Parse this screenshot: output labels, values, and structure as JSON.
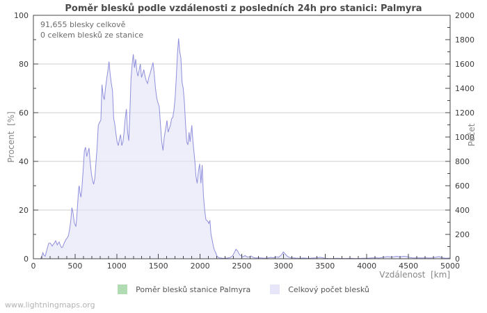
{
  "page": {
    "title": "Poměr blesků podle vzdálenosti z posledních 24h pro stanici: Palmyra",
    "watermark": "www.lightningmaps.org"
  },
  "annotation": {
    "line1": "91,655 blesky celkově",
    "line2": "0 celkem blesků ze stanice"
  },
  "axes": {
    "left_label": "Procent  [%]",
    "right_label": "Počet",
    "x_label": "Vzdálenost  [km]"
  },
  "legend": {
    "items": [
      {
        "label": "Poměr blesků stanice Palmyra",
        "color": "#b1dcb1"
      },
      {
        "label": "Celkový počet blesků",
        "color": "#e6e6f8"
      }
    ]
  },
  "chart_data": {
    "type": "area",
    "title": "Poměr blesků podle vzdálenosti z posledních 24h pro stanici: Palmyra",
    "xlabel": "Vzdálenost [km]",
    "ylabel_left": "Procent [%]",
    "ylabel_right": "Počet",
    "x_axis": {
      "min": 0,
      "max": 5000,
      "major": 500,
      "minor": 100
    },
    "y_left": {
      "min": 0,
      "max": 100,
      "major": 20,
      "minor": 10
    },
    "y_right": {
      "min": 0,
      "max": 2000,
      "major": 200,
      "minor": 100
    },
    "grid": true,
    "grid_color": "#cfcfcf",
    "frame_color": "#444444",
    "tick_label_color": "#3a3a3a",
    "legend_position": "bottom-center",
    "annotations": [
      "91,655 blesky celkově",
      "0 celkem blesků ze stanice"
    ],
    "series": [
      {
        "name": "Poměr blesků stanice Palmyra",
        "axis": "left",
        "line_color": "#9cc89c",
        "fill_color": "rgba(177,220,177,0.45)",
        "points": [
          [
            0,
            0
          ],
          [
            5000,
            0
          ]
        ]
      },
      {
        "name": "Celkový počet blesků",
        "axis": "right",
        "line_color": "#8f8fdc",
        "fill_color": "rgba(228,228,248,0.62)",
        "points": [
          [
            0,
            0
          ],
          [
            50,
            0
          ],
          [
            86,
            0
          ],
          [
            100,
            20
          ],
          [
            114,
            50
          ],
          [
            125,
            30
          ],
          [
            142,
            20
          ],
          [
            160,
            70
          ],
          [
            184,
            126
          ],
          [
            200,
            130
          ],
          [
            211,
            120
          ],
          [
            225,
            104
          ],
          [
            240,
            120
          ],
          [
            253,
            130
          ],
          [
            267,
            148
          ],
          [
            286,
            114
          ],
          [
            300,
            130
          ],
          [
            309,
            138
          ],
          [
            325,
            110
          ],
          [
            336,
            92
          ],
          [
            351,
            96
          ],
          [
            370,
            130
          ],
          [
            392,
            160
          ],
          [
            405,
            170
          ],
          [
            420,
            190
          ],
          [
            434,
            240
          ],
          [
            450,
            320
          ],
          [
            462,
            420
          ],
          [
            475,
            380
          ],
          [
            490,
            300
          ],
          [
            500,
            280
          ],
          [
            510,
            264
          ],
          [
            520,
            340
          ],
          [
            530,
            440
          ],
          [
            543,
            580
          ],
          [
            550,
            600
          ],
          [
            560,
            540
          ],
          [
            570,
            506
          ],
          [
            580,
            560
          ],
          [
            590,
            660
          ],
          [
            600,
            760
          ],
          [
            612,
            888
          ],
          [
            626,
            916
          ],
          [
            640,
            840
          ],
          [
            655,
            880
          ],
          [
            668,
            910
          ],
          [
            680,
            800
          ],
          [
            696,
            698
          ],
          [
            710,
            640
          ],
          [
            723,
            612
          ],
          [
            737,
            660
          ],
          [
            751,
            792
          ],
          [
            765,
            920
          ],
          [
            779,
            1098
          ],
          [
            795,
            1120
          ],
          [
            810,
            1140
          ],
          [
            823,
            1430
          ],
          [
            837,
            1340
          ],
          [
            851,
            1306
          ],
          [
            865,
            1400
          ],
          [
            880,
            1480
          ],
          [
            893,
            1540
          ],
          [
            907,
            1620
          ],
          [
            921,
            1520
          ],
          [
            935,
            1440
          ],
          [
            949,
            1380
          ],
          [
            963,
            1154
          ],
          [
            977,
            1106
          ],
          [
            990,
            1030
          ],
          [
            1004,
            960
          ],
          [
            1018,
            930
          ],
          [
            1032,
            980
          ],
          [
            1046,
            1020
          ],
          [
            1060,
            930
          ],
          [
            1074,
            960
          ],
          [
            1088,
            1040
          ],
          [
            1102,
            1154
          ],
          [
            1116,
            1230
          ],
          [
            1130,
            1040
          ],
          [
            1144,
            970
          ],
          [
            1158,
            1200
          ],
          [
            1171,
            1480
          ],
          [
            1185,
            1600
          ],
          [
            1199,
            1680
          ],
          [
            1213,
            1570
          ],
          [
            1227,
            1640
          ],
          [
            1241,
            1540
          ],
          [
            1255,
            1500
          ],
          [
            1269,
            1550
          ],
          [
            1283,
            1600
          ],
          [
            1297,
            1490
          ],
          [
            1311,
            1520
          ],
          [
            1325,
            1554
          ],
          [
            1340,
            1500
          ],
          [
            1355,
            1460
          ],
          [
            1370,
            1440
          ],
          [
            1385,
            1490
          ],
          [
            1400,
            1520
          ],
          [
            1415,
            1560
          ],
          [
            1436,
            1612
          ],
          [
            1450,
            1520
          ],
          [
            1465,
            1400
          ],
          [
            1480,
            1320
          ],
          [
            1495,
            1280
          ],
          [
            1510,
            1250
          ],
          [
            1525,
            1100
          ],
          [
            1540,
            960
          ],
          [
            1555,
            890
          ],
          [
            1570,
            1000
          ],
          [
            1585,
            1060
          ],
          [
            1603,
            1136
          ],
          [
            1617,
            1040
          ],
          [
            1630,
            1070
          ],
          [
            1645,
            1100
          ],
          [
            1658,
            1150
          ],
          [
            1672,
            1160
          ],
          [
            1686,
            1220
          ],
          [
            1700,
            1320
          ],
          [
            1715,
            1500
          ],
          [
            1728,
            1680
          ],
          [
            1742,
            1810
          ],
          [
            1756,
            1700
          ],
          [
            1770,
            1650
          ],
          [
            1784,
            1450
          ],
          [
            1798,
            1400
          ],
          [
            1812,
            1280
          ],
          [
            1826,
            1100
          ],
          [
            1840,
            960
          ],
          [
            1854,
            936
          ],
          [
            1868,
            1040
          ],
          [
            1880,
            960
          ],
          [
            1901,
            1096
          ],
          [
            1915,
            960
          ],
          [
            1937,
            802
          ],
          [
            1950,
            680
          ],
          [
            1965,
            620
          ],
          [
            1980,
            720
          ],
          [
            1995,
            780
          ],
          [
            2010,
            620
          ],
          [
            2025,
            770
          ],
          [
            2040,
            520
          ],
          [
            2055,
            400
          ],
          [
            2070,
            320
          ],
          [
            2090,
            310
          ],
          [
            2105,
            290
          ],
          [
            2118,
            316
          ],
          [
            2131,
            200
          ],
          [
            2145,
            154
          ],
          [
            2160,
            100
          ],
          [
            2173,
            70
          ],
          [
            2187,
            50
          ],
          [
            2201,
            24
          ],
          [
            2215,
            12
          ],
          [
            2240,
            6
          ],
          [
            2270,
            4
          ],
          [
            2300,
            4
          ],
          [
            2330,
            6
          ],
          [
            2360,
            10
          ],
          [
            2390,
            24
          ],
          [
            2410,
            50
          ],
          [
            2430,
            78
          ],
          [
            2450,
            64
          ],
          [
            2465,
            44
          ],
          [
            2480,
            30
          ],
          [
            2495,
            24
          ],
          [
            2510,
            16
          ],
          [
            2525,
            20
          ],
          [
            2540,
            26
          ],
          [
            2555,
            18
          ],
          [
            2570,
            14
          ],
          [
            2590,
            16
          ],
          [
            2610,
            22
          ],
          [
            2630,
            14
          ],
          [
            2650,
            8
          ],
          [
            2680,
            6
          ],
          [
            2710,
            8
          ],
          [
            2740,
            6
          ],
          [
            2770,
            4
          ],
          [
            2800,
            6
          ],
          [
            2830,
            8
          ],
          [
            2850,
            12
          ],
          [
            2870,
            8
          ],
          [
            2900,
            10
          ],
          [
            2920,
            16
          ],
          [
            2940,
            12
          ],
          [
            2963,
            24
          ],
          [
            2980,
            36
          ],
          [
            3000,
            56
          ],
          [
            3020,
            40
          ],
          [
            3047,
            20
          ],
          [
            3070,
            12
          ],
          [
            3100,
            8
          ],
          [
            3130,
            6
          ],
          [
            3160,
            4
          ],
          [
            3200,
            4
          ],
          [
            3240,
            6
          ],
          [
            3280,
            4
          ],
          [
            3320,
            4
          ],
          [
            3360,
            6
          ],
          [
            3400,
            8
          ],
          [
            3439,
            12
          ],
          [
            3470,
            8
          ],
          [
            3500,
            4
          ],
          [
            3550,
            2
          ],
          [
            3600,
            2
          ],
          [
            3650,
            4
          ],
          [
            3700,
            2
          ],
          [
            3750,
            2
          ],
          [
            3800,
            4
          ],
          [
            3850,
            2
          ],
          [
            3900,
            2
          ],
          [
            3950,
            4
          ],
          [
            4000,
            4
          ],
          [
            4050,
            6
          ],
          [
            4100,
            8
          ],
          [
            4150,
            6
          ],
          [
            4200,
            12
          ],
          [
            4250,
            18
          ],
          [
            4300,
            14
          ],
          [
            4357,
            20
          ],
          [
            4400,
            16
          ],
          [
            4440,
            20
          ],
          [
            4482,
            18
          ],
          [
            4520,
            10
          ],
          [
            4560,
            6
          ],
          [
            4600,
            8
          ],
          [
            4650,
            6
          ],
          [
            4700,
            8
          ],
          [
            4750,
            6
          ],
          [
            4800,
            8
          ],
          [
            4833,
            14
          ],
          [
            4870,
            18
          ],
          [
            4900,
            8
          ],
          [
            4950,
            4
          ],
          [
            5000,
            6
          ]
        ]
      }
    ]
  }
}
